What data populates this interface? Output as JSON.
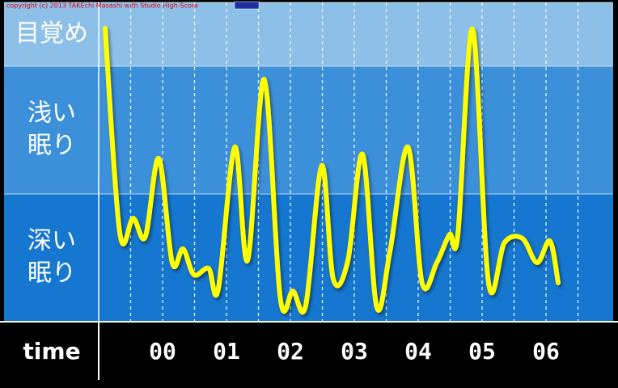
{
  "chart_data": {
    "type": "line",
    "copyright": "copyright (c) 2013 TAKEchi Masashi with Studio High-Score",
    "x_label": "time",
    "bands": [
      {
        "lines": [
          "目覚め"
        ],
        "range": [
          80,
          100
        ],
        "color": "#8cc0e8"
      },
      {
        "lines": [
          "浅い",
          "眠り"
        ],
        "range": [
          40,
          80
        ],
        "color": "#3c90da"
      },
      {
        "lines": [
          "深い",
          "眠り"
        ],
        "range": [
          0,
          40
        ],
        "color": "#1677d0"
      }
    ],
    "xlim": [
      -1,
      7.05
    ],
    "ylim": [
      0,
      100
    ],
    "xticks": [
      {
        "value": 0,
        "label": "00"
      },
      {
        "value": 1,
        "label": "01"
      },
      {
        "value": 2,
        "label": "02"
      },
      {
        "value": 3,
        "label": "03"
      },
      {
        "value": 4,
        "label": "04"
      },
      {
        "value": 5,
        "label": "05"
      },
      {
        "value": 6,
        "label": "06"
      }
    ],
    "xgrid": [
      -0.5,
      0,
      0.5,
      1,
      1.5,
      2,
      2.5,
      3,
      3.5,
      4,
      4.5,
      5,
      5.5,
      6,
      6.5
    ],
    "x": [
      -0.9,
      -0.67,
      -0.46,
      -0.27,
      -0.06,
      0.15,
      0.32,
      0.49,
      0.72,
      0.87,
      1.13,
      1.33,
      1.59,
      1.84,
      2.04,
      2.24,
      2.49,
      2.67,
      2.9,
      3.13,
      3.35,
      3.56,
      3.84,
      4.06,
      4.29,
      4.49,
      4.62,
      4.85,
      5.1,
      5.35,
      5.63,
      5.86,
      6.06,
      6.19
    ],
    "values": [
      91.9,
      27.8,
      32.4,
      26.6,
      51.1,
      18.5,
      22.8,
      14.7,
      16.7,
      10.1,
      54.7,
      19.2,
      75.9,
      7.6,
      9.6,
      5.1,
      48.9,
      13.4,
      19.2,
      52.4,
      4.6,
      22.3,
      54.7,
      12.2,
      18.5,
      27.3,
      27.3,
      91.6,
      12.2,
      24.8,
      26.1,
      18.5,
      25.3,
      12.2
    ],
    "color": "#ffff00"
  }
}
